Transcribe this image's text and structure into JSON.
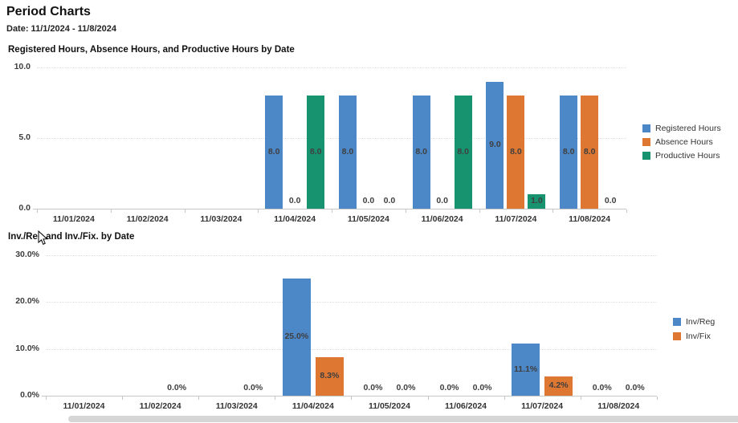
{
  "page": {
    "title": "Period Charts",
    "date_range": "Date: 11/1/2024 - 11/8/2024"
  },
  "colors": {
    "blue": "#4c87c7",
    "orange": "#dd7732",
    "green": "#17936f"
  },
  "chart_data": [
    {
      "type": "bar",
      "title": "Registered Hours, Absence Hours, and Productive Hours by Date",
      "categories": [
        "11/01/2024",
        "11/02/2024",
        "11/03/2024",
        "11/04/2024",
        "11/05/2024",
        "11/06/2024",
        "11/07/2024",
        "11/08/2024"
      ],
      "series": [
        {
          "name": "Registered Hours",
          "color": "blue",
          "values": [
            null,
            null,
            null,
            8.0,
            8.0,
            8.0,
            9.0,
            8.0
          ]
        },
        {
          "name": "Absence Hours",
          "color": "orange",
          "values": [
            null,
            null,
            null,
            0.0,
            0.0,
            0.0,
            8.0,
            8.0
          ]
        },
        {
          "name": "Productive Hours",
          "color": "green",
          "values": [
            null,
            null,
            null,
            8.0,
            0.0,
            8.0,
            1.0,
            0.0
          ]
        }
      ],
      "y_ticks": [
        {
          "value": 0,
          "label": "0.0"
        },
        {
          "value": 5,
          "label": "5.0"
        },
        {
          "value": 10,
          "label": "10.0"
        }
      ],
      "ylim": [
        0,
        10
      ],
      "value_suffix": "",
      "legend_position": "right",
      "grid": "horizontal-dotted"
    },
    {
      "type": "bar",
      "title": "Inv./Reg and Inv./Fix. by Date",
      "categories": [
        "11/01/2024",
        "11/02/2024",
        "11/03/2024",
        "11/04/2024",
        "11/05/2024",
        "11/06/2024",
        "11/07/2024",
        "11/08/2024"
      ],
      "series": [
        {
          "name": "Inv/Reg",
          "color": "blue",
          "values": [
            null,
            null,
            null,
            25.0,
            0.0,
            0.0,
            11.1,
            0.0
          ]
        },
        {
          "name": "Inv/Fix",
          "color": "orange",
          "values": [
            null,
            0.0,
            0.0,
            8.3,
            0.0,
            0.0,
            4.2,
            0.0
          ]
        }
      ],
      "y_ticks": [
        {
          "value": 0,
          "label": "0.0%"
        },
        {
          "value": 10,
          "label": "10.0%"
        },
        {
          "value": 20,
          "label": "20.0%"
        },
        {
          "value": 30,
          "label": "30.0%"
        }
      ],
      "ylim": [
        0,
        30
      ],
      "value_suffix": "%",
      "legend_position": "right",
      "grid": "horizontal-dotted"
    }
  ]
}
